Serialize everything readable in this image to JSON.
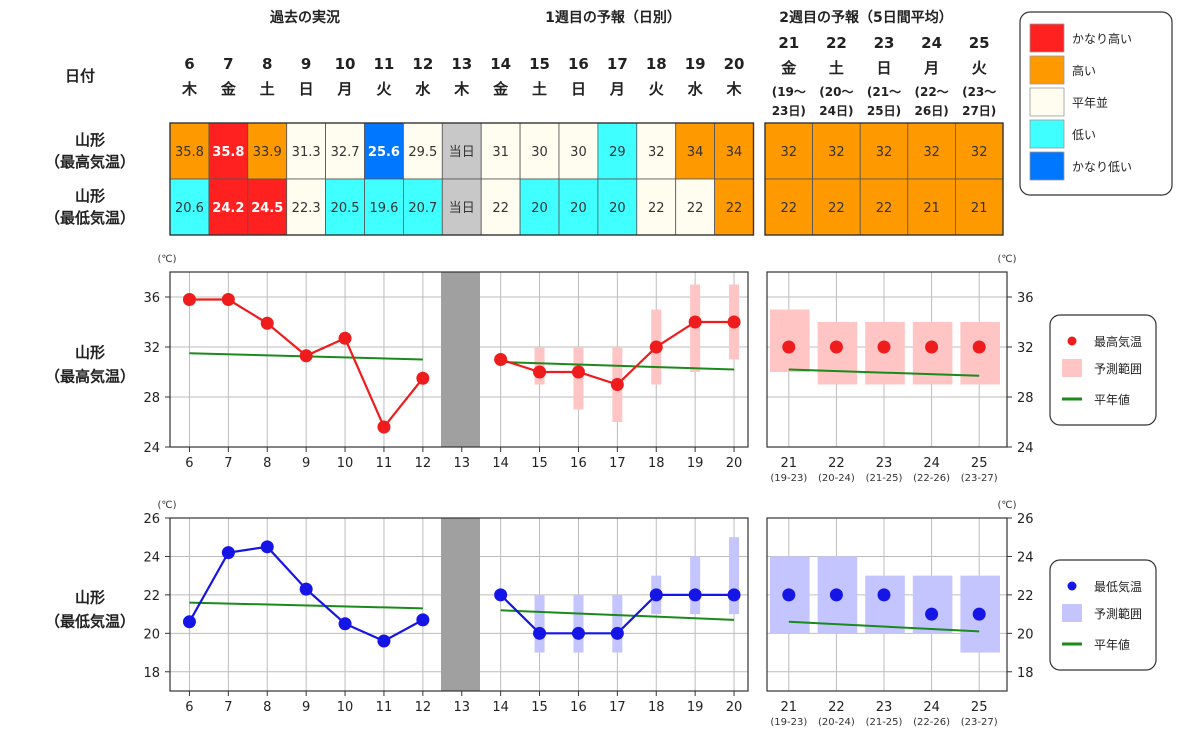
{
  "header": {
    "date_label": "日付",
    "sections": [
      "過去の実況",
      "1週目の予報（日別）",
      "2週目の予報（5日間平均）"
    ]
  },
  "days": [
    {
      "d": "6",
      "w": "木"
    },
    {
      "d": "7",
      "w": "金"
    },
    {
      "d": "8",
      "w": "土"
    },
    {
      "d": "9",
      "w": "日"
    },
    {
      "d": "10",
      "w": "月"
    },
    {
      "d": "11",
      "w": "火"
    },
    {
      "d": "12",
      "w": "水"
    },
    {
      "d": "13",
      "w": "木"
    },
    {
      "d": "14",
      "w": "金"
    },
    {
      "d": "15",
      "w": "土"
    },
    {
      "d": "16",
      "w": "日"
    },
    {
      "d": "17",
      "w": "月"
    },
    {
      "d": "18",
      "w": "火"
    },
    {
      "d": "19",
      "w": "水"
    },
    {
      "d": "20",
      "w": "木"
    }
  ],
  "week2": [
    {
      "d": "21",
      "w": "金",
      "r1": "(19〜",
      "r2": "23日)",
      "short": "(19-23)"
    },
    {
      "d": "22",
      "w": "土",
      "r1": "(20〜",
      "r2": "24日)",
      "short": "(20-24)"
    },
    {
      "d": "23",
      "w": "日",
      "r1": "(21〜",
      "r2": "25日)",
      "short": "(21-25)"
    },
    {
      "d": "24",
      "w": "月",
      "r1": "(22〜",
      "r2": "26日)",
      "short": "(22-26)"
    },
    {
      "d": "25",
      "w": "火",
      "r1": "(23〜",
      "r2": "27日)",
      "short": "(23-27)"
    }
  ],
  "rows": [
    {
      "l1": "山形",
      "l2": "（最高気温）",
      "cells": [
        {
          "v": "35.8",
          "c": "high"
        },
        {
          "v": "35.8",
          "c": "veryhigh"
        },
        {
          "v": "33.9",
          "c": "high"
        },
        {
          "v": "31.3",
          "c": "normal"
        },
        {
          "v": "32.7",
          "c": "normal"
        },
        {
          "v": "25.6",
          "c": "verylow"
        },
        {
          "v": "29.5",
          "c": "normal"
        },
        {
          "v": "当日",
          "c": "today"
        },
        {
          "v": "31",
          "c": "normal"
        },
        {
          "v": "30",
          "c": "normal"
        },
        {
          "v": "30",
          "c": "normal"
        },
        {
          "v": "29",
          "c": "low"
        },
        {
          "v": "32",
          "c": "normal"
        },
        {
          "v": "34",
          "c": "high"
        },
        {
          "v": "34",
          "c": "high"
        }
      ],
      "week2": [
        {
          "v": "32",
          "c": "high"
        },
        {
          "v": "32",
          "c": "high"
        },
        {
          "v": "32",
          "c": "high"
        },
        {
          "v": "32",
          "c": "high"
        },
        {
          "v": "32",
          "c": "high"
        }
      ]
    },
    {
      "l1": "山形",
      "l2": "（最低気温）",
      "cells": [
        {
          "v": "20.6",
          "c": "low"
        },
        {
          "v": "24.2",
          "c": "veryhigh"
        },
        {
          "v": "24.5",
          "c": "veryhigh"
        },
        {
          "v": "22.3",
          "c": "normal"
        },
        {
          "v": "20.5",
          "c": "low"
        },
        {
          "v": "19.6",
          "c": "low"
        },
        {
          "v": "20.7",
          "c": "low"
        },
        {
          "v": "当日",
          "c": "today"
        },
        {
          "v": "22",
          "c": "normal"
        },
        {
          "v": "20",
          "c": "low"
        },
        {
          "v": "20",
          "c": "low"
        },
        {
          "v": "20",
          "c": "low"
        },
        {
          "v": "22",
          "c": "normal"
        },
        {
          "v": "22",
          "c": "normal"
        },
        {
          "v": "22",
          "c": "high"
        }
      ],
      "week2": [
        {
          "v": "22",
          "c": "high"
        },
        {
          "v": "22",
          "c": "high"
        },
        {
          "v": "22",
          "c": "high"
        },
        {
          "v": "21",
          "c": "high"
        },
        {
          "v": "21",
          "c": "high"
        }
      ]
    }
  ],
  "colors": {
    "veryhigh": "#ff2020",
    "high": "#ff9900",
    "normal": "#fffdef",
    "low": "#40ffff",
    "verylow": "#0077ff",
    "today": "#c8c8c8",
    "max_line": "#ee1c1c",
    "max_range": "#ffc4c4",
    "min_line": "#1515e6",
    "min_range": "#c4c4ff",
    "normal_line": "#1a8a1a",
    "gap": "#a0a0a0"
  },
  "color_legend": [
    {
      "label": "かなり高い",
      "c": "veryhigh"
    },
    {
      "label": "高い",
      "c": "high"
    },
    {
      "label": "平年並",
      "c": "normal"
    },
    {
      "label": "低い",
      "c": "low"
    },
    {
      "label": "かなり低い",
      "c": "verylow"
    }
  ],
  "chart_data": [
    {
      "type": "line",
      "title": "山形（最高気温）",
      "unit": "(℃)",
      "ylim": [
        24,
        38
      ],
      "yticks": [
        24,
        28,
        32,
        36
      ],
      "x": [
        6,
        7,
        8,
        9,
        10,
        11,
        12,
        13,
        14,
        15,
        16,
        17,
        18,
        19,
        20
      ],
      "observed": [
        35.8,
        35.8,
        33.9,
        31.3,
        32.7,
        25.6,
        29.5
      ],
      "forecast": [
        31,
        30,
        30,
        29,
        32,
        34,
        34
      ],
      "forecast_range": [
        null,
        [
          29,
          32
        ],
        [
          27,
          32
        ],
        [
          26,
          32
        ],
        [
          29,
          35
        ],
        [
          30,
          37
        ],
        [
          31,
          37
        ]
      ],
      "normal_past": [
        31.5,
        31.0
      ],
      "normal_week1": [
        30.8,
        30.2
      ],
      "week2_x": [
        "21",
        "22",
        "23",
        "24",
        "25"
      ],
      "week2_values": [
        32,
        32,
        32,
        32,
        32
      ],
      "week2_range": [
        [
          30,
          35
        ],
        [
          29,
          34
        ],
        [
          29,
          34
        ],
        [
          29,
          34
        ],
        [
          29,
          34
        ]
      ],
      "normal_week2": [
        30.2,
        29.7
      ],
      "legend": [
        "最高気温",
        "予測範囲",
        "平年値"
      ]
    },
    {
      "type": "line",
      "title": "山形（最低気温）",
      "unit": "(℃)",
      "ylim": [
        17,
        26
      ],
      "yticks": [
        18,
        20,
        22,
        24,
        26
      ],
      "x": [
        6,
        7,
        8,
        9,
        10,
        11,
        12,
        13,
        14,
        15,
        16,
        17,
        18,
        19,
        20
      ],
      "observed": [
        20.6,
        24.2,
        24.5,
        22.3,
        20.5,
        19.6,
        20.7
      ],
      "forecast": [
        22,
        20,
        20,
        20,
        22,
        22,
        22
      ],
      "forecast_range": [
        null,
        [
          19,
          22
        ],
        [
          19,
          22
        ],
        [
          19,
          22
        ],
        [
          21,
          23
        ],
        [
          21,
          24
        ],
        [
          21,
          25
        ]
      ],
      "normal_past": [
        21.6,
        21.3
      ],
      "normal_week1": [
        21.2,
        20.7
      ],
      "week2_x": [
        "21",
        "22",
        "23",
        "24",
        "25"
      ],
      "week2_values": [
        22,
        22,
        22,
        21,
        21
      ],
      "week2_range": [
        [
          20,
          24
        ],
        [
          20,
          24
        ],
        [
          20,
          23
        ],
        [
          20,
          23
        ],
        [
          19,
          23
        ]
      ],
      "normal_week2": [
        20.6,
        20.1
      ],
      "legend": [
        "最低気温",
        "予測範囲",
        "平年値"
      ]
    }
  ]
}
